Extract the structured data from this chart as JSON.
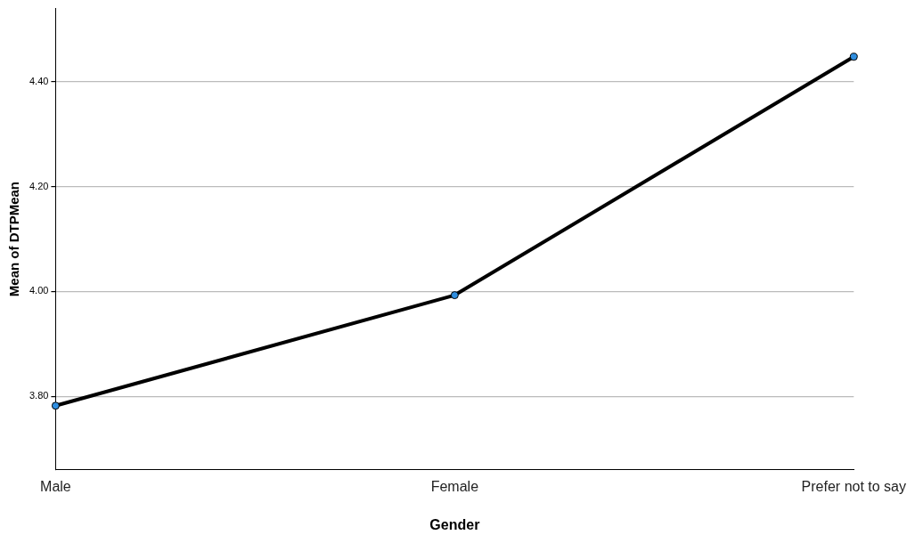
{
  "chart_data": {
    "type": "line",
    "xlabel": "Gender",
    "ylabel": "Mean of DTPMean",
    "categories": [
      "Male",
      "Female",
      "Prefer not to say"
    ],
    "series": [
      {
        "color": "#000000",
        "values": [
          3.782,
          3.993,
          4.448
        ]
      }
    ],
    "ylim": [
      3.66,
      4.54
    ],
    "yticks": [
      {
        "value": 3.8,
        "label": "3.80"
      },
      {
        "value": 4.0,
        "label": "4.00"
      },
      {
        "value": 4.2,
        "label": "4.20"
      },
      {
        "value": 4.4,
        "label": "4.40"
      }
    ],
    "grid": "y",
    "marker": "circle",
    "line_style": "solid",
    "legend": false
  }
}
